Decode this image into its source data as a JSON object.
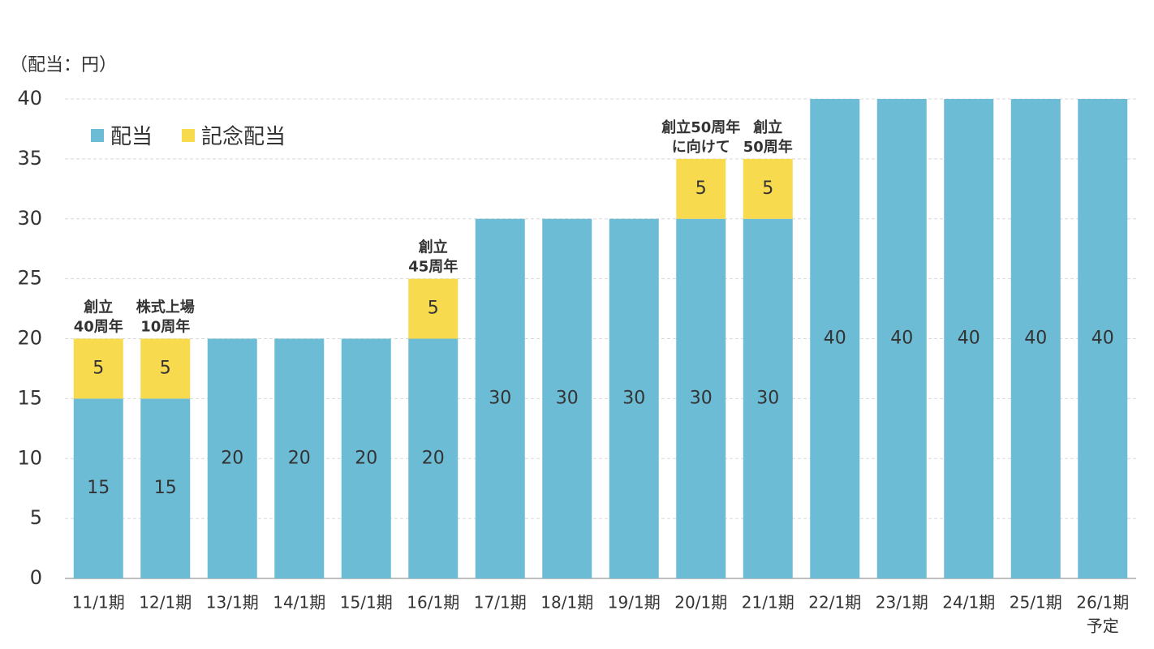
{
  "colors": {
    "base": "#6dbcd6",
    "memorial": "#f8da4f",
    "grid": "#d8d8d8",
    "axis": "#999999",
    "text": "#333333"
  },
  "unit_label": "（配当：円）",
  "legend": {
    "base_label": "配当",
    "memorial_label": "記念配当"
  },
  "chart_data": {
    "type": "bar",
    "stacked": true,
    "categories": [
      "11/1期",
      "12/1期",
      "13/1期",
      "14/1期",
      "15/1期",
      "16/1期",
      "17/1期",
      "18/1期",
      "19/1期",
      "20/1期",
      "21/1期",
      "22/1期",
      "23/1期",
      "24/1期",
      "25/1期",
      "26/1期"
    ],
    "category_sublabels": [
      "",
      "",
      "",
      "",
      "",
      "",
      "",
      "",
      "",
      "",
      "",
      "",
      "",
      "",
      "",
      "予定"
    ],
    "series": [
      {
        "name": "配当",
        "values": [
          15,
          15,
          20,
          20,
          20,
          20,
          30,
          30,
          30,
          30,
          30,
          40,
          40,
          40,
          40,
          40
        ]
      },
      {
        "name": "記念配当",
        "values": [
          5,
          5,
          0,
          0,
          0,
          5,
          0,
          0,
          0,
          5,
          5,
          0,
          0,
          0,
          0,
          0
        ]
      }
    ],
    "annotations": [
      {
        "index": 0,
        "lines": [
          "創立",
          "40周年"
        ]
      },
      {
        "index": 1,
        "lines": [
          "株式上場",
          "10周年"
        ]
      },
      {
        "index": 5,
        "lines": [
          "創立",
          "45周年"
        ]
      },
      {
        "index": 9,
        "lines": [
          "創立50周年",
          "に向けて"
        ]
      },
      {
        "index": 10,
        "lines": [
          "創立",
          "50周年"
        ]
      }
    ],
    "ylim": [
      0,
      40
    ],
    "yticks": [
      0,
      5,
      10,
      15,
      20,
      25,
      30,
      35,
      40
    ],
    "grid": true,
    "legend_position": "top-left"
  }
}
